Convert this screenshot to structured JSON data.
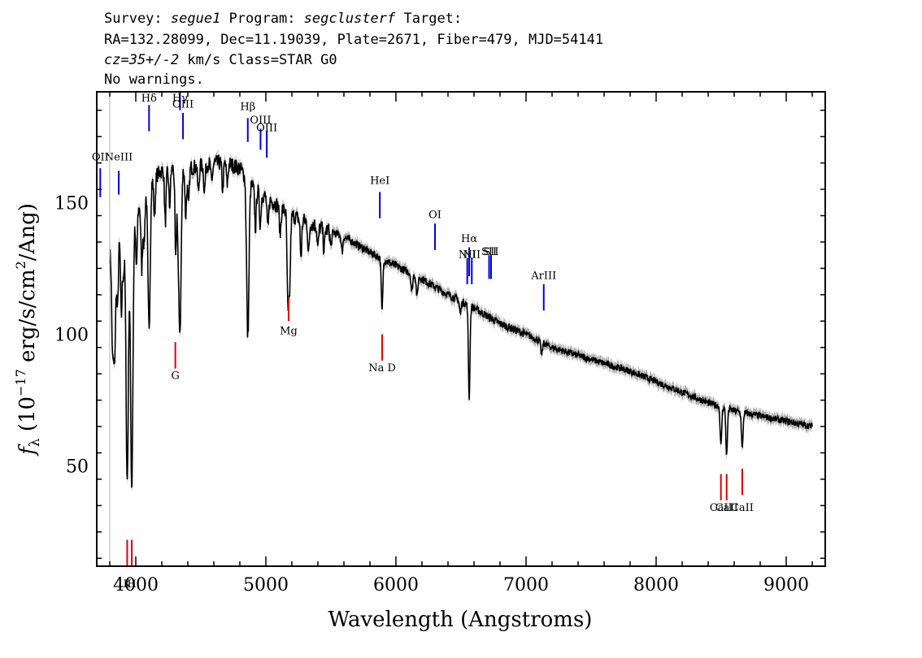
{
  "header": {
    "line1": {
      "p1": "Survey: ",
      "survey": "segue1",
      "p2": " Program: ",
      "program": "segclusterf",
      "p3": " Target:"
    },
    "line2": "RA=132.28099, Dec=11.19039, Plate=2671, Fiber=479, MJD=54141",
    "line3": {
      "cz": "cz=35+/-2",
      "rest": " km/s Class=STAR G0"
    },
    "line4": "No warnings."
  },
  "chart_data": {
    "type": "line",
    "title": "",
    "xlabel": "Wavelength (Angstroms)",
    "ylabel": "f_λ (10^-17 erg/s/cm^2/Ang)",
    "ylabel_parts": {
      "f": "f",
      "sub": "λ",
      "a": " (10",
      "exp1": "−17",
      "b": " erg/s/cm",
      "exp2": "2",
      "c": "/Ang)"
    },
    "xlim": [
      3700,
      9300
    ],
    "ylim": [
      12,
      192
    ],
    "x_ticks": [
      4000,
      5000,
      6000,
      7000,
      8000,
      9000
    ],
    "y_ticks": [
      50,
      100,
      150
    ],
    "grid": false,
    "series": [
      {
        "color": "#000000",
        "error_band_color": "#b0b0b0",
        "continuum": [
          [
            3800,
            130
          ],
          [
            3850,
            135
          ],
          [
            3900,
            138
          ],
          [
            3950,
            140
          ],
          [
            4000,
            145
          ],
          [
            4050,
            150
          ],
          [
            4100,
            158
          ],
          [
            4200,
            162
          ],
          [
            4300,
            163
          ],
          [
            4400,
            163
          ],
          [
            4500,
            164
          ],
          [
            4600,
            165
          ],
          [
            4700,
            165
          ],
          [
            4800,
            163
          ],
          [
            4900,
            156
          ],
          [
            5000,
            152
          ],
          [
            5200,
            145
          ],
          [
            5400,
            141
          ],
          [
            5600,
            137
          ],
          [
            5800,
            131
          ],
          [
            6000,
            126
          ],
          [
            6200,
            121
          ],
          [
            6400,
            115
          ],
          [
            6600,
            110
          ],
          [
            6800,
            104
          ],
          [
            7000,
            100
          ],
          [
            7200,
            95
          ],
          [
            7400,
            92
          ],
          [
            7600,
            89
          ],
          [
            7800,
            86
          ],
          [
            8000,
            82
          ],
          [
            8200,
            78
          ],
          [
            8400,
            74
          ],
          [
            8600,
            71
          ],
          [
            8800,
            69
          ],
          [
            9000,
            67
          ],
          [
            9200,
            65
          ]
        ],
        "absorption_features": [
          {
            "x": 3820,
            "depth": 30
          },
          {
            "x": 3836,
            "depth": 45
          },
          {
            "x": 3860,
            "depth": 25
          },
          {
            "x": 3889,
            "depth": 30
          },
          {
            "x": 3905,
            "depth": 15
          },
          {
            "x": 3934,
            "depth": 95
          },
          {
            "x": 3969,
            "depth": 100
          },
          {
            "x": 4005,
            "depth": 20
          },
          {
            "x": 4046,
            "depth": 25
          },
          {
            "x": 4064,
            "depth": 18
          },
          {
            "x": 4102,
            "depth": 55
          },
          {
            "x": 4144,
            "depth": 15
          },
          {
            "x": 4227,
            "depth": 20
          },
          {
            "x": 4260,
            "depth": 14
          },
          {
            "x": 4307,
            "depth": 35
          },
          {
            "x": 4326,
            "depth": 20
          },
          {
            "x": 4340,
            "depth": 60
          },
          {
            "x": 4384,
            "depth": 18
          },
          {
            "x": 4405,
            "depth": 15
          },
          {
            "x": 4481,
            "depth": 10
          },
          {
            "x": 4528,
            "depth": 10
          },
          {
            "x": 4584,
            "depth": 8
          },
          {
            "x": 4668,
            "depth": 10
          },
          {
            "x": 4703,
            "depth": 8
          },
          {
            "x": 4861,
            "depth": 60
          },
          {
            "x": 4920,
            "depth": 15
          },
          {
            "x": 4957,
            "depth": 12
          },
          {
            "x": 5015,
            "depth": 12
          },
          {
            "x": 5110,
            "depth": 10
          },
          {
            "x": 5167,
            "depth": 20
          },
          {
            "x": 5173,
            "depth": 22
          },
          {
            "x": 5184,
            "depth": 24
          },
          {
            "x": 5270,
            "depth": 14
          },
          {
            "x": 5328,
            "depth": 12
          },
          {
            "x": 5400,
            "depth": 8
          },
          {
            "x": 5447,
            "depth": 8
          },
          {
            "x": 5500,
            "depth": 6
          },
          {
            "x": 5586,
            "depth": 6
          },
          {
            "x": 5893,
            "depth": 20
          },
          {
            "x": 6122,
            "depth": 7
          },
          {
            "x": 6162,
            "depth": 8
          },
          {
            "x": 6495,
            "depth": 5
          },
          {
            "x": 6563,
            "depth": 35
          },
          {
            "x": 7120,
            "depth": 5
          },
          {
            "x": 8498,
            "depth": 15
          },
          {
            "x": 8542,
            "depth": 18
          },
          {
            "x": 8662,
            "depth": 14
          }
        ]
      }
    ],
    "emission_markers": [
      {
        "label": "OII",
        "x": 3727,
        "y_low": 152,
        "y_high": 163,
        "label_y": 166
      },
      {
        "label": "NeIII",
        "x": 3869,
        "y_low": 153,
        "y_high": 162,
        "label_y": 166
      },
      {
        "label": "Hδ",
        "x": 4102,
        "y_low": 177,
        "y_high": 187,
        "label_y": 190
      },
      {
        "label": "Hγ",
        "x": 4340,
        "y_low": 185,
        "y_high": 200,
        "label_y": 196
      },
      {
        "label": "OIII",
        "x": 4363,
        "y_low": 174,
        "y_high": 184,
        "label_y": 186
      },
      {
        "label": "Hβ",
        "x": 4861,
        "y_low": 173,
        "y_high": 182,
        "label_y": 185
      },
      {
        "label": "OIII",
        "x": 4959,
        "y_low": 170,
        "y_high": 178,
        "label_y": 180
      },
      {
        "label": "OIII",
        "x": 5007,
        "y_low": 167,
        "y_high": 177,
        "label_y": 177
      },
      {
        "label": "HeI",
        "x": 5876,
        "y_low": 144,
        "y_high": 154,
        "label_y": 157
      },
      {
        "label": "OI",
        "x": 6300,
        "y_low": 132,
        "y_high": 142,
        "label_y": 144
      },
      {
        "label": "NII",
        "x": 6548,
        "y_low": 119,
        "y_high": 129,
        "label_y": 129
      },
      {
        "label": "Hα",
        "x": 6563,
        "y_low": 122,
        "y_high": 133,
        "label_y": 135
      },
      {
        "label": "NII",
        "x": 6583,
        "y_low": 119,
        "y_high": 129,
        "label_y": 129
      },
      {
        "label": "SII",
        "x": 6716,
        "y_low": 121,
        "y_high": 130,
        "label_y": 130
      },
      {
        "label": "SII",
        "x": 6731,
        "y_low": 121,
        "y_high": 130,
        "label_y": 130
      },
      {
        "label": "ArIII",
        "x": 7136,
        "y_low": 109,
        "y_high": 119,
        "label_y": 121
      }
    ],
    "absorption_markers": [
      {
        "label": "K",
        "x": 3934,
        "y_low": 12,
        "y_high": 22,
        "label_y": 4
      },
      {
        "label": "H",
        "x": 3969,
        "y_low": 12,
        "y_high": 22,
        "label_y": 4
      },
      {
        "label": "G",
        "x": 4304,
        "y_low": 87,
        "y_high": 97,
        "label_y": 83
      },
      {
        "label": "Mg",
        "x": 5175,
        "y_low": 105,
        "y_high": 114,
        "label_y": 100
      },
      {
        "label": "Na D",
        "x": 5894,
        "y_low": 90,
        "y_high": 100,
        "label_y": 86
      },
      {
        "label": "CaII",
        "x": 8498,
        "y_low": 37,
        "y_high": 47,
        "label_y": 33
      },
      {
        "label": "CaII",
        "x": 8542,
        "y_low": 37,
        "y_high": 47,
        "label_y": 33
      },
      {
        "label": "CaII",
        "x": 8662,
        "y_low": 39,
        "y_high": 49,
        "label_y": 33
      }
    ],
    "marker_colors": {
      "emission": "#0000dd",
      "absorption": "#dd0000",
      "minor": "#000000"
    }
  }
}
